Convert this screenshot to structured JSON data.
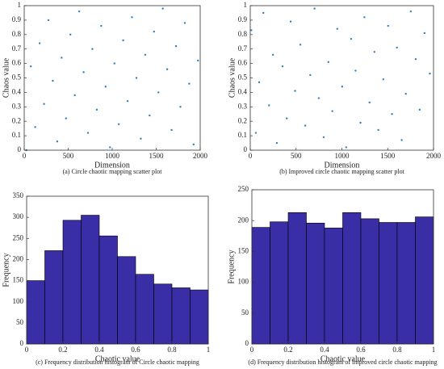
{
  "chart_data": [
    {
      "type": "scatter",
      "caption": "(a) Circle chaotic mapping scatter plot",
      "xlabel": "Dimension",
      "ylabel": "Chaos value",
      "color": "#2f7fc1",
      "x": [
        25,
        75,
        125,
        175,
        225,
        275,
        325,
        375,
        425,
        475,
        525,
        575,
        625,
        675,
        725,
        775,
        825,
        875,
        925,
        975,
        1025,
        1075,
        1125,
        1175,
        1225,
        1275,
        1325,
        1375,
        1425,
        1475,
        1525,
        1575,
        1625,
        1675,
        1725,
        1775,
        1825,
        1875,
        1925,
        1975
      ],
      "y": [
        0.0,
        0.58,
        0.16,
        0.74,
        0.32,
        0.9,
        0.48,
        0.06,
        0.64,
        0.22,
        0.8,
        0.38,
        0.96,
        0.54,
        0.12,
        0.7,
        0.28,
        0.86,
        0.44,
        0.02,
        0.6,
        0.18,
        0.76,
        0.34,
        0.92,
        0.5,
        0.08,
        0.66,
        0.24,
        0.82,
        0.4,
        0.98,
        0.56,
        0.14,
        0.72,
        0.3,
        0.88,
        0.46,
        0.04,
        0.62
      ],
      "xlim": [
        0,
        2000
      ],
      "xticks": [
        0,
        500,
        1000,
        1500,
        2000
      ],
      "ylim": [
        0,
        1
      ],
      "yticks": [
        0,
        0.1,
        0.2,
        0.3,
        0.4,
        0.5,
        0.6,
        0.7,
        0.8,
        0.9,
        1
      ]
    },
    {
      "type": "scatter",
      "caption": "(b) Improved circle chaotic mapping scatter plot",
      "xlabel": "Dimension",
      "ylabel": "Chaos value",
      "color": "#2f7fc1",
      "x": [
        12,
        61,
        97,
        143,
        205,
        248,
        290,
        352,
        398,
        441,
        489,
        547,
        600,
        655,
        702,
        748,
        801,
        853,
        896,
        950,
        1003,
        1047,
        1101,
        1149,
        1203,
        1246,
        1302,
        1355,
        1398,
        1452,
        1505,
        1547,
        1601,
        1653,
        1698,
        1752,
        1806,
        1849,
        1902,
        1960
      ],
      "y": [
        0.83,
        0.12,
        0.47,
        0.95,
        0.31,
        0.66,
        0.05,
        0.58,
        0.22,
        0.89,
        0.41,
        0.73,
        0.17,
        0.52,
        0.98,
        0.36,
        0.09,
        0.61,
        0.27,
        0.84,
        0.44,
        0.02,
        0.77,
        0.55,
        0.19,
        0.92,
        0.33,
        0.68,
        0.14,
        0.49,
        0.86,
        0.25,
        0.71,
        0.07,
        0.39,
        0.96,
        0.63,
        0.28,
        0.81,
        0.53
      ],
      "xlim": [
        0,
        2000
      ],
      "xticks": [
        0,
        500,
        1000,
        1500,
        2000
      ],
      "ylim": [
        0,
        1
      ],
      "yticks": [
        0,
        0.1,
        0.2,
        0.3,
        0.4,
        0.5,
        0.6,
        0.7,
        0.8,
        0.9,
        1
      ]
    },
    {
      "type": "histogram",
      "caption": "(c) Frequency distribution histogram of Circle chaotic mapping",
      "xlabel": "Chaotic value",
      "ylabel": "Frequency",
      "color": "#3a2ea6",
      "bins": [
        0,
        0.1,
        0.2,
        0.3,
        0.4,
        0.5,
        0.6,
        0.7,
        0.8,
        0.9,
        1
      ],
      "values": [
        150,
        221,
        293,
        305,
        256,
        207,
        165,
        142,
        133,
        128
      ],
      "xlim": [
        0,
        1
      ],
      "xticks": [
        0,
        0.2,
        0.4,
        0.6,
        0.8,
        1
      ],
      "ylim": [
        0,
        350
      ],
      "yticks": [
        0,
        50,
        100,
        150,
        200,
        250,
        300,
        350
      ]
    },
    {
      "type": "histogram",
      "caption": "(d) Frequency distribution histogram of improved circle chaotic mapping",
      "xlabel": "Chaotic value",
      "ylabel": "Frequency",
      "color": "#3a2ea6",
      "bins": [
        0,
        0.1,
        0.2,
        0.3,
        0.4,
        0.5,
        0.6,
        0.7,
        0.8,
        0.9,
        1
      ],
      "values": [
        189,
        198,
        213,
        196,
        188,
        213,
        203,
        197,
        197,
        206
      ],
      "xlim": [
        0,
        1
      ],
      "xticks": [
        0,
        0.2,
        0.4,
        0.6,
        0.8,
        1
      ],
      "ylim": [
        0,
        250
      ],
      "yticks": [
        0,
        50,
        100,
        150,
        200,
        250
      ]
    }
  ]
}
